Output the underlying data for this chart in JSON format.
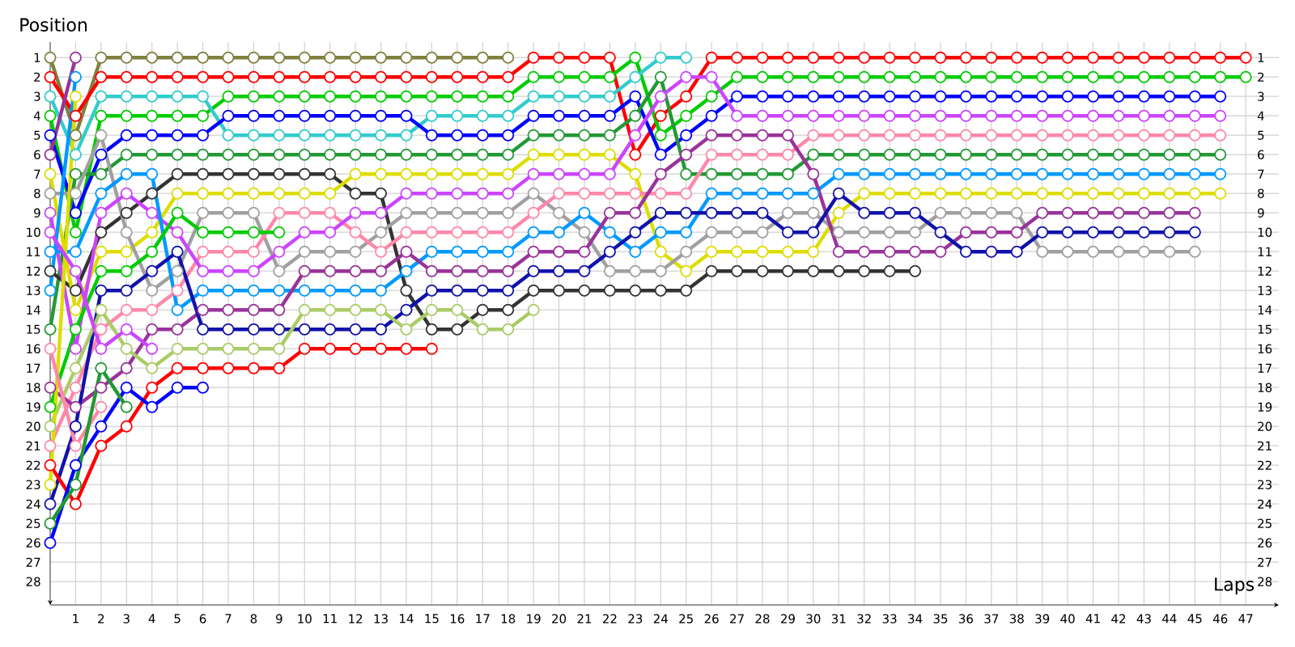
{
  "chart_data": {
    "type": "line",
    "xlabel": "Laps",
    "ylabel": "Position",
    "marker": "circle",
    "grid": true,
    "x": [
      0,
      1,
      2,
      3,
      4,
      5,
      6,
      7,
      8,
      9,
      10,
      11,
      12,
      13,
      14,
      15,
      16,
      17,
      18,
      19,
      20,
      21,
      22,
      23,
      24,
      25,
      26,
      27,
      28,
      29,
      30,
      31,
      32,
      33,
      34,
      35,
      36,
      37,
      38,
      39,
      40,
      41,
      42,
      43,
      44,
      45,
      46,
      47
    ],
    "xlim": [
      0,
      48.3
    ],
    "xticks": [
      1,
      2,
      3,
      4,
      5,
      6,
      7,
      8,
      9,
      10,
      11,
      12,
      13,
      14,
      15,
      16,
      17,
      18,
      19,
      20,
      21,
      22,
      23,
      24,
      25,
      26,
      27,
      28,
      29,
      30,
      31,
      32,
      33,
      34,
      35,
      36,
      37,
      38,
      39,
      40,
      41,
      42,
      43,
      44,
      45,
      46,
      47
    ],
    "ylim": [
      29.2,
      0.2
    ],
    "yticks": [
      1,
      2,
      3,
      4,
      5,
      6,
      7,
      8,
      9,
      10,
      11,
      12,
      13,
      14,
      15,
      16,
      17,
      18,
      19,
      20,
      21,
      22,
      23,
      24,
      25,
      26,
      27,
      28
    ],
    "y2lim": [
      29.2,
      0.2
    ],
    "y2ticks": [
      1,
      2,
      3,
      4,
      5,
      6,
      7,
      8,
      9,
      10,
      11,
      12,
      13,
      14,
      15,
      16,
      17,
      18,
      19,
      20,
      21,
      22,
      23,
      24,
      25,
      26,
      27,
      28
    ],
    "series": [
      {
        "color": "#808040",
        "values": [
          1,
          5,
          1,
          1,
          1,
          1,
          1,
          1,
          1,
          1,
          1,
          1,
          1,
          1,
          1,
          1,
          1,
          1,
          1,
          null,
          null,
          null,
          null,
          null,
          null,
          null,
          null,
          null,
          null,
          null,
          null,
          null,
          null,
          null,
          null,
          null,
          null,
          null,
          null,
          null,
          null,
          null,
          null,
          null,
          null,
          null,
          null,
          null
        ]
      },
      {
        "color": "#ff0000",
        "values": [
          2,
          4,
          2,
          2,
          2,
          2,
          2,
          2,
          2,
          2,
          2,
          2,
          2,
          2,
          2,
          2,
          2,
          2,
          2,
          1,
          1,
          1,
          1,
          6,
          4,
          3,
          1,
          1,
          1,
          1,
          1,
          1,
          1,
          1,
          1,
          1,
          1,
          1,
          1,
          1,
          1,
          1,
          1,
          1,
          1,
          1,
          1,
          1
        ]
      },
      {
        "color": "#00cc00",
        "values": [
          4,
          10,
          4,
          4,
          4,
          4,
          4,
          3,
          3,
          3,
          3,
          3,
          3,
          3,
          3,
          3,
          3,
          3,
          3,
          2,
          2,
          2,
          2,
          1,
          5,
          4,
          3,
          2,
          2,
          2,
          2,
          2,
          2,
          2,
          2,
          2,
          2,
          2,
          2,
          2,
          2,
          2,
          2,
          2,
          2,
          2,
          2,
          2
        ]
      },
      {
        "color": "#33cccc",
        "values": [
          3,
          6,
          3,
          3,
          3,
          3,
          3,
          5,
          5,
          5,
          5,
          5,
          5,
          5,
          5,
          4,
          4,
          4,
          4,
          3,
          3,
          3,
          3,
          2,
          1,
          1,
          null,
          null,
          null,
          null,
          null,
          null,
          null,
          null,
          null,
          null,
          null,
          null,
          null,
          null,
          null,
          null,
          null,
          null,
          null,
          null,
          null,
          null
        ]
      },
      {
        "color": "#0000ff",
        "values": [
          5,
          9,
          6,
          5,
          5,
          5,
          5,
          4,
          4,
          4,
          4,
          4,
          4,
          4,
          4,
          5,
          5,
          5,
          5,
          4,
          4,
          4,
          4,
          3,
          6,
          5,
          4,
          3,
          3,
          3,
          3,
          3,
          3,
          3,
          3,
          3,
          3,
          3,
          3,
          3,
          3,
          3,
          3,
          3,
          3,
          3,
          3,
          null
        ]
      },
      {
        "color": "#229933",
        "values": [
          15,
          7,
          7,
          6,
          6,
          6,
          6,
          6,
          6,
          6,
          6,
          6,
          6,
          6,
          6,
          6,
          6,
          6,
          6,
          5,
          5,
          5,
          5,
          4,
          2,
          7,
          7,
          7,
          7,
          7,
          6,
          6,
          6,
          6,
          6,
          6,
          6,
          6,
          6,
          6,
          6,
          6,
          6,
          6,
          6,
          6,
          6,
          null
        ]
      },
      {
        "color": "#333333",
        "values": [
          12,
          13,
          10,
          9,
          8,
          7,
          7,
          7,
          7,
          7,
          7,
          7,
          8,
          8,
          13,
          15,
          15,
          14,
          14,
          13,
          13,
          13,
          13,
          13,
          13,
          13,
          12,
          12,
          12,
          12,
          12,
          12,
          12,
          12,
          12,
          null,
          null,
          null,
          null,
          null,
          null,
          null,
          null,
          null,
          null,
          null,
          null,
          null
        ]
      },
      {
        "color": "#dddd00",
        "values": [
          7,
          14,
          11,
          11,
          10,
          8,
          8,
          8,
          8,
          8,
          8,
          8,
          7,
          7,
          7,
          7,
          7,
          7,
          7,
          6,
          6,
          6,
          6,
          7,
          11,
          12,
          11,
          11,
          11,
          11,
          11,
          9,
          8,
          8,
          8,
          8,
          8,
          8,
          8,
          8,
          8,
          8,
          8,
          8,
          8,
          8,
          8,
          null
        ]
      },
      {
        "color": "#a0a0a0",
        "values": [
          8,
          8,
          5,
          10,
          13,
          12,
          9,
          9,
          9,
          12,
          11,
          11,
          11,
          10,
          9,
          9,
          9,
          9,
          9,
          8,
          9,
          10,
          12,
          12,
          12,
          11,
          10,
          10,
          10,
          9,
          9,
          10,
          10,
          10,
          10,
          9,
          9,
          9,
          9,
          11,
          11,
          11,
          11,
          11,
          11,
          11,
          null,
          null
        ]
      },
      {
        "color": "#ff88aa",
        "values": [
          21,
          18,
          15,
          14,
          14,
          13,
          11,
          11,
          11,
          9,
          9,
          9,
          10,
          11,
          10,
          10,
          10,
          10,
          10,
          9,
          8,
          8,
          8,
          8,
          8,
          8,
          6,
          6,
          6,
          6,
          5,
          5,
          5,
          5,
          5,
          5,
          5,
          5,
          5,
          5,
          5,
          5,
          5,
          5,
          5,
          5,
          5,
          null
        ]
      },
      {
        "color": "#cc44ff",
        "values": [
          9,
          16,
          9,
          8,
          9,
          10,
          12,
          12,
          12,
          11,
          10,
          10,
          9,
          9,
          8,
          8,
          8,
          8,
          8,
          7,
          7,
          7,
          7,
          5,
          3,
          2,
          2,
          4,
          4,
          4,
          4,
          4,
          4,
          4,
          4,
          4,
          4,
          4,
          4,
          4,
          4,
          4,
          4,
          4,
          4,
          4,
          4,
          null
        ]
      },
      {
        "color": "#0099ff",
        "values": [
          11,
          11,
          8,
          7,
          7,
          14,
          13,
          13,
          13,
          13,
          13,
          13,
          13,
          13,
          12,
          11,
          11,
          11,
          11,
          10,
          10,
          9,
          10,
          11,
          10,
          10,
          8,
          8,
          8,
          8,
          8,
          7,
          7,
          7,
          7,
          7,
          7,
          7,
          7,
          7,
          7,
          7,
          7,
          7,
          7,
          7,
          7,
          null
        ]
      },
      {
        "color": "#993399",
        "values": [
          18,
          19,
          18,
          17,
          15,
          15,
          14,
          14,
          14,
          14,
          12,
          12,
          12,
          12,
          11,
          12,
          12,
          12,
          12,
          11,
          11,
          11,
          9,
          9,
          7,
          6,
          5,
          5,
          5,
          5,
          7,
          11,
          11,
          11,
          11,
          11,
          10,
          10,
          10,
          9,
          9,
          9,
          9,
          9,
          9,
          9,
          null,
          null
        ]
      },
      {
        "color": "#1111aa",
        "values": [
          24,
          20,
          13,
          13,
          12,
          11,
          15,
          15,
          15,
          15,
          15,
          15,
          15,
          15,
          14,
          13,
          13,
          13,
          13,
          12,
          12,
          12,
          11,
          10,
          9,
          9,
          9,
          9,
          9,
          10,
          10,
          8,
          9,
          9,
          9,
          10,
          11,
          11,
          11,
          10,
          10,
          10,
          10,
          10,
          10,
          10,
          null,
          null
        ]
      },
      {
        "color": "#aacc66",
        "values": [
          20,
          17,
          14,
          16,
          17,
          16,
          16,
          16,
          16,
          16,
          14,
          14,
          14,
          14,
          15,
          14,
          14,
          15,
          15,
          14,
          null,
          null,
          null,
          null,
          null,
          null,
          null,
          null,
          null,
          null,
          null,
          null,
          null,
          null,
          null,
          null,
          null,
          null,
          null,
          null,
          null,
          null,
          null,
          null,
          null,
          null,
          null,
          null
        ]
      },
      {
        "color": "#00cc00",
        "values": [
          19,
          15,
          12,
          12,
          11,
          9,
          10,
          10,
          10,
          10,
          null,
          null,
          null,
          null,
          null,
          null,
          null,
          null,
          null,
          null,
          null,
          null,
          null,
          null,
          null,
          null,
          null,
          null,
          null,
          null,
          null,
          null,
          null,
          null,
          null,
          null,
          null,
          null,
          null,
          null,
          null,
          null,
          null,
          null,
          null,
          null,
          null,
          null
        ]
      },
      {
        "color": "#ff0000",
        "values": [
          22,
          24,
          21,
          20,
          18,
          17,
          17,
          17,
          17,
          17,
          16,
          16,
          16,
          16,
          16,
          16,
          null,
          null,
          null,
          null,
          null,
          null,
          null,
          null,
          null,
          null,
          null,
          null,
          null,
          null,
          null,
          null,
          null,
          null,
          null,
          null,
          null,
          null,
          null,
          null,
          null,
          null,
          null,
          null,
          null,
          null,
          null,
          null
        ]
      },
      {
        "color": "#0000ff",
        "values": [
          26,
          22,
          20,
          18,
          19,
          18,
          18,
          null,
          null,
          null,
          null,
          null,
          null,
          null,
          null,
          null,
          null,
          null,
          null,
          null,
          null,
          null,
          null,
          null,
          null,
          null,
          null,
          null,
          null,
          null,
          null,
          null,
          null,
          null,
          null,
          null,
          null,
          null,
          null,
          null,
          null,
          null,
          null,
          null,
          null,
          null,
          null,
          null
        ]
      },
      {
        "color": "#993399",
        "values": [
          6,
          1,
          null,
          null,
          null,
          null,
          null,
          null,
          null,
          null,
          null,
          null,
          null,
          null,
          null,
          null,
          null,
          null,
          null,
          null,
          null,
          null,
          null,
          null,
          null,
          null,
          null,
          null,
          null,
          null,
          null,
          null,
          null,
          null,
          null,
          null,
          null,
          null,
          null,
          null,
          null,
          null,
          null,
          null,
          null,
          null,
          null,
          null
        ]
      },
      {
        "color": "#0099ff",
        "values": [
          13,
          2,
          null,
          null,
          null,
          null,
          null,
          null,
          null,
          null,
          null,
          null,
          null,
          null,
          null,
          null,
          null,
          null,
          null,
          null,
          null,
          null,
          null,
          null,
          null,
          null,
          null,
          null,
          null,
          null,
          null,
          null,
          null,
          null,
          null,
          null,
          null,
          null,
          null,
          null,
          null,
          null,
          null,
          null,
          null,
          null,
          null,
          null
        ]
      },
      {
        "color": "#dddd00",
        "values": [
          23,
          3,
          null,
          null,
          null,
          null,
          null,
          null,
          null,
          null,
          null,
          null,
          null,
          null,
          null,
          null,
          null,
          null,
          null,
          null,
          null,
          null,
          null,
          null,
          null,
          null,
          null,
          null,
          null,
          null,
          null,
          null,
          null,
          null,
          null,
          null,
          null,
          null,
          null,
          null,
          null,
          null,
          null,
          null,
          null,
          null,
          null,
          null
        ]
      },
      {
        "color": "#ff88aa",
        "values": [
          16,
          21,
          19,
          null,
          null,
          null,
          null,
          null,
          null,
          null,
          null,
          null,
          null,
          null,
          null,
          null,
          null,
          null,
          null,
          null,
          null,
          null,
          null,
          null,
          null,
          null,
          null,
          null,
          null,
          null,
          null,
          null,
          null,
          null,
          null,
          null,
          null,
          null,
          null,
          null,
          null,
          null,
          null,
          null,
          null,
          null,
          null,
          null
        ]
      },
      {
        "color": "#229933",
        "values": [
          25,
          23,
          17,
          19,
          null,
          null,
          null,
          null,
          null,
          null,
          null,
          null,
          null,
          null,
          null,
          null,
          null,
          null,
          null,
          null,
          null,
          null,
          null,
          null,
          null,
          null,
          null,
          null,
          null,
          null,
          null,
          null,
          null,
          null,
          null,
          null,
          null,
          null,
          null,
          null,
          null,
          null,
          null,
          null,
          null,
          null,
          null,
          null
        ]
      },
      {
        "color": "#cc44ff",
        "values": [
          10,
          12,
          16,
          15,
          16,
          null,
          null,
          null,
          null,
          null,
          null,
          null,
          null,
          null,
          null,
          null,
          null,
          null,
          null,
          null,
          null,
          null,
          null,
          null,
          null,
          null,
          null,
          null,
          null,
          null,
          null,
          null,
          null,
          null,
          null,
          null,
          null,
          null,
          null,
          null,
          null,
          null,
          null,
          null,
          null,
          null,
          null,
          null
        ]
      }
    ]
  }
}
